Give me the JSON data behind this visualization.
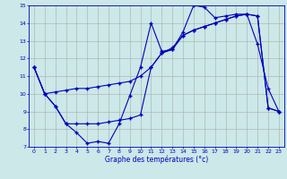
{
  "xlabel": "Graphe des températures (°c)",
  "background_color": "#cce8e8",
  "line_color": "#0000bb",
  "grid_color": "#aaaaaa",
  "xlim": [
    -0.5,
    23.5
  ],
  "ylim": [
    7,
    15
  ],
  "xticks": [
    0,
    1,
    2,
    3,
    4,
    5,
    6,
    7,
    8,
    9,
    10,
    11,
    12,
    13,
    14,
    15,
    16,
    17,
    18,
    19,
    20,
    21,
    22,
    23
  ],
  "yticks": [
    7,
    8,
    9,
    10,
    11,
    12,
    13,
    14,
    15
  ],
  "series1_x": [
    0,
    1,
    2,
    3,
    4,
    5,
    6,
    7,
    8,
    9,
    10,
    11,
    12,
    13,
    14,
    15,
    16,
    17,
    18,
    19,
    20,
    21,
    22,
    23
  ],
  "series1_y": [
    11.5,
    10.0,
    9.3,
    8.3,
    7.8,
    7.2,
    7.3,
    7.2,
    8.3,
    9.9,
    11.5,
    14.0,
    12.4,
    12.5,
    13.5,
    15.0,
    14.9,
    14.3,
    14.4,
    14.5,
    14.5,
    12.8,
    10.3,
    9.0
  ],
  "series2_x": [
    0,
    1,
    2,
    3,
    4,
    5,
    6,
    7,
    8,
    9,
    10,
    11,
    12,
    13,
    14,
    15,
    16,
    17,
    18,
    19,
    20,
    21,
    22,
    23
  ],
  "series2_y": [
    11.5,
    10.0,
    9.3,
    8.3,
    8.3,
    8.3,
    8.3,
    8.4,
    8.5,
    8.6,
    8.8,
    11.5,
    12.3,
    12.5,
    13.3,
    13.6,
    13.8,
    14.0,
    14.2,
    14.4,
    14.5,
    14.4,
    9.2,
    9.0
  ],
  "series3_x": [
    0,
    1,
    2,
    3,
    4,
    5,
    6,
    7,
    8,
    9,
    10,
    11,
    12,
    13,
    14,
    15,
    16,
    17,
    18,
    19,
    20,
    21,
    22,
    23
  ],
  "series3_y": [
    11.5,
    10.0,
    10.1,
    10.2,
    10.3,
    10.3,
    10.4,
    10.5,
    10.6,
    10.7,
    11.0,
    11.5,
    12.3,
    12.6,
    13.3,
    13.6,
    13.8,
    14.0,
    14.2,
    14.4,
    14.5,
    14.4,
    9.2,
    9.0
  ]
}
